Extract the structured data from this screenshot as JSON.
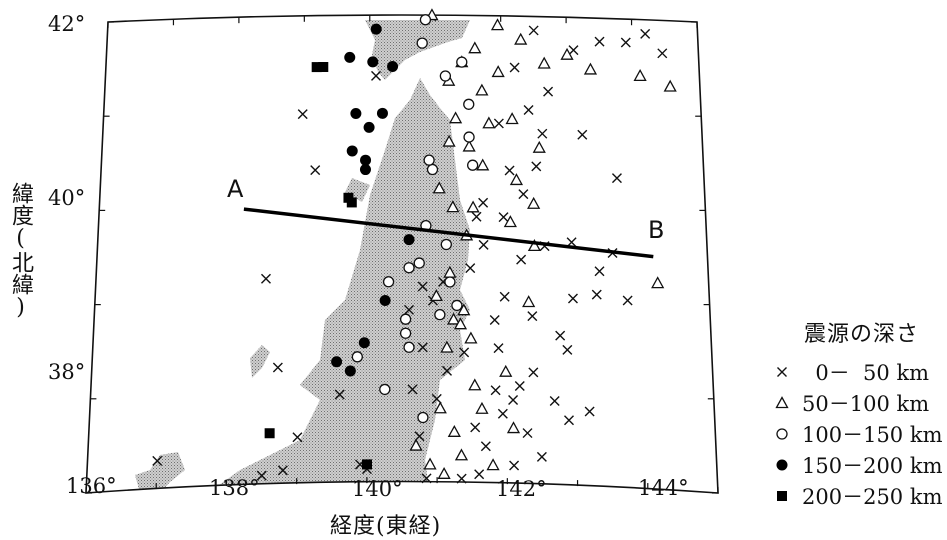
{
  "map": {
    "lon_range": [
      136,
      145
    ],
    "lat_range": [
      37,
      42
    ],
    "x_ticks": [
      "136°",
      "138°",
      "140°",
      "142°",
      "144°"
    ],
    "y_ticks": [
      "42°",
      "40°",
      "38°"
    ],
    "x_axis_title": "経度(東経)",
    "y_axis_title": "緯度(北緯)",
    "section": {
      "start_label": "A",
      "end_label": "B",
      "start": {
        "lon": 138.15,
        "lat": 39.95
      },
      "end": {
        "lon": 144.2,
        "lat": 39.48
      }
    }
  },
  "legend": {
    "title": "震源の深さ",
    "items": [
      {
        "symbol": "cross",
        "label": "  0－  50 km"
      },
      {
        "symbol": "triangle",
        "label": "50－100 km"
      },
      {
        "symbol": "circle",
        "label": "100－150 km"
      },
      {
        "symbol": "dot",
        "label": "150－200 km"
      },
      {
        "symbol": "square",
        "label": "200－250 km"
      }
    ]
  },
  "chart_data": {
    "type": "scatter",
    "title": "",
    "xlabel": "経度(東経)",
    "ylabel": "緯度(北緯)",
    "xlim": [
      136,
      145
    ],
    "ylim": [
      37,
      42
    ],
    "series": [
      {
        "name": "0－ 50 km",
        "symbol": "cross",
        "points": [
          [
            137.0,
            37.3
          ],
          [
            138.5,
            37.1
          ],
          [
            138.7,
            38.25
          ],
          [
            138.5,
            39.2
          ],
          [
            139.0,
            40.95
          ],
          [
            139.2,
            40.35
          ],
          [
            139.6,
            37.95
          ],
          [
            139.0,
            37.5
          ],
          [
            140.1,
            41.35
          ],
          [
            140.0,
            37.15
          ],
          [
            139.9,
            37.2
          ],
          [
            138.8,
            37.15
          ],
          [
            140.6,
            38.85
          ],
          [
            140.75,
            37.5
          ],
          [
            140.8,
            39.1
          ],
          [
            140.8,
            38.45
          ],
          [
            140.95,
            38.95
          ],
          [
            140.65,
            38.0
          ],
          [
            141.0,
            37.9
          ],
          [
            141.15,
            38.2
          ],
          [
            141.4,
            38.4
          ],
          [
            141.55,
            37.6
          ],
          [
            141.7,
            37.4
          ],
          [
            141.6,
            37.1
          ],
          [
            141.85,
            38.0
          ],
          [
            141.95,
            37.75
          ],
          [
            142.2,
            38.05
          ],
          [
            142.3,
            37.55
          ],
          [
            142.5,
            37.3
          ],
          [
            142.4,
            38.8
          ],
          [
            142.7,
            37.9
          ],
          [
            142.1,
            37.9
          ],
          [
            142.8,
            38.6
          ],
          [
            142.0,
            39.0
          ],
          [
            142.25,
            39.4
          ],
          [
            142.3,
            40.1
          ],
          [
            142.1,
            40.35
          ],
          [
            141.95,
            40.85
          ],
          [
            142.2,
            41.45
          ],
          [
            142.4,
            41.0
          ],
          [
            142.5,
            40.4
          ],
          [
            142.6,
            40.75
          ],
          [
            142.7,
            41.2
          ],
          [
            142.5,
            41.85
          ],
          [
            143.1,
            41.65
          ],
          [
            143.5,
            41.75
          ],
          [
            143.9,
            41.75
          ],
          [
            144.2,
            41.85
          ],
          [
            144.45,
            41.65
          ],
          [
            143.2,
            40.75
          ],
          [
            143.7,
            40.3
          ],
          [
            143.4,
            39.3
          ],
          [
            143.35,
            39.05
          ],
          [
            143.0,
            39.0
          ],
          [
            142.9,
            38.45
          ],
          [
            143.2,
            37.8
          ],
          [
            141.85,
            38.75
          ],
          [
            141.9,
            38.45
          ],
          [
            141.7,
            39.55
          ],
          [
            141.6,
            39.85
          ],
          [
            141.1,
            39.15
          ],
          [
            141.5,
            39.3
          ],
          [
            141.7,
            40.0
          ],
          [
            142.0,
            39.85
          ],
          [
            142.6,
            39.55
          ],
          [
            143.0,
            39.6
          ],
          [
            143.6,
            39.5
          ],
          [
            143.8,
            39.0
          ],
          [
            142.4,
            38.2
          ],
          [
            142.9,
            37.7
          ],
          [
            142.1,
            37.2
          ],
          [
            141.35,
            37.05
          ],
          [
            140.85,
            37.05
          ]
        ]
      },
      {
        "name": "50－100 km",
        "symbol": "triangle",
        "points": [
          [
            140.95,
            42.0
          ],
          [
            141.2,
            41.3
          ],
          [
            141.4,
            41.5
          ],
          [
            141.7,
            41.2
          ],
          [
            141.95,
            41.9
          ],
          [
            142.3,
            41.75
          ],
          [
            141.6,
            41.65
          ],
          [
            141.95,
            41.4
          ],
          [
            142.15,
            40.9
          ],
          [
            141.8,
            40.85
          ],
          [
            141.5,
            40.6
          ],
          [
            141.3,
            40.9
          ],
          [
            141.2,
            40.65
          ],
          [
            141.05,
            40.15
          ],
          [
            141.25,
            39.95
          ],
          [
            141.45,
            39.65
          ],
          [
            141.2,
            39.25
          ],
          [
            141.0,
            39.0
          ],
          [
            141.25,
            38.75
          ],
          [
            141.4,
            38.85
          ],
          [
            141.35,
            38.7
          ],
          [
            141.5,
            38.55
          ],
          [
            141.15,
            38.45
          ],
          [
            141.55,
            38.05
          ],
          [
            141.05,
            37.8
          ],
          [
            141.25,
            37.55
          ],
          [
            140.7,
            37.4
          ],
          [
            140.9,
            37.2
          ],
          [
            141.1,
            37.1
          ],
          [
            141.35,
            37.3
          ],
          [
            141.8,
            37.2
          ],
          [
            141.65,
            37.8
          ],
          [
            142.1,
            37.6
          ],
          [
            142.0,
            38.2
          ],
          [
            142.35,
            38.95
          ],
          [
            142.45,
            39.55
          ],
          [
            142.1,
            39.8
          ],
          [
            142.2,
            40.25
          ],
          [
            142.45,
            40.0
          ],
          [
            142.55,
            40.6
          ],
          [
            142.65,
            41.5
          ],
          [
            143.0,
            41.6
          ],
          [
            143.35,
            41.45
          ],
          [
            144.1,
            41.4
          ],
          [
            144.55,
            41.3
          ],
          [
            144.25,
            39.2
          ],
          [
            141.55,
            39.95
          ],
          [
            141.7,
            40.4
          ]
        ]
      },
      {
        "name": "100－150 km",
        "symbol": "circle",
        "points": [
          [
            140.85,
            41.95
          ],
          [
            140.8,
            41.7
          ],
          [
            141.15,
            41.35
          ],
          [
            141.4,
            41.5
          ],
          [
            141.5,
            41.05
          ],
          [
            141.5,
            40.7
          ],
          [
            141.55,
            40.4
          ],
          [
            140.95,
            40.35
          ],
          [
            140.9,
            40.45
          ],
          [
            140.85,
            39.75
          ],
          [
            141.15,
            39.55
          ],
          [
            140.75,
            39.35
          ],
          [
            140.6,
            39.3
          ],
          [
            140.3,
            39.15
          ],
          [
            140.55,
            38.6
          ],
          [
            140.6,
            38.45
          ],
          [
            140.25,
            38.0
          ],
          [
            140.8,
            37.7
          ],
          [
            139.85,
            38.35
          ],
          [
            141.2,
            39.15
          ],
          [
            141.05,
            38.8
          ],
          [
            140.55,
            38.75
          ],
          [
            141.3,
            38.9
          ]
        ]
      },
      {
        "name": "150－200 km",
        "symbol": "dot",
        "points": [
          [
            140.1,
            41.85
          ],
          [
            139.7,
            41.55
          ],
          [
            140.35,
            41.45
          ],
          [
            140.05,
            41.5
          ],
          [
            140.2,
            40.95
          ],
          [
            140.0,
            40.8
          ],
          [
            139.8,
            40.95
          ],
          [
            139.75,
            40.55
          ],
          [
            139.95,
            40.45
          ],
          [
            139.95,
            40.35
          ],
          [
            140.6,
            39.6
          ],
          [
            140.25,
            38.95
          ],
          [
            139.95,
            38.5
          ],
          [
            139.55,
            38.3
          ],
          [
            139.75,
            38.2
          ]
        ]
      },
      {
        "name": "200－250 km",
        "symbol": "square",
        "points": [
          [
            139.2,
            41.45
          ],
          [
            139.3,
            41.45
          ],
          [
            139.7,
            40.05
          ],
          [
            139.75,
            40.0
          ],
          [
            138.6,
            37.55
          ],
          [
            140.0,
            37.2
          ]
        ]
      }
    ]
  }
}
